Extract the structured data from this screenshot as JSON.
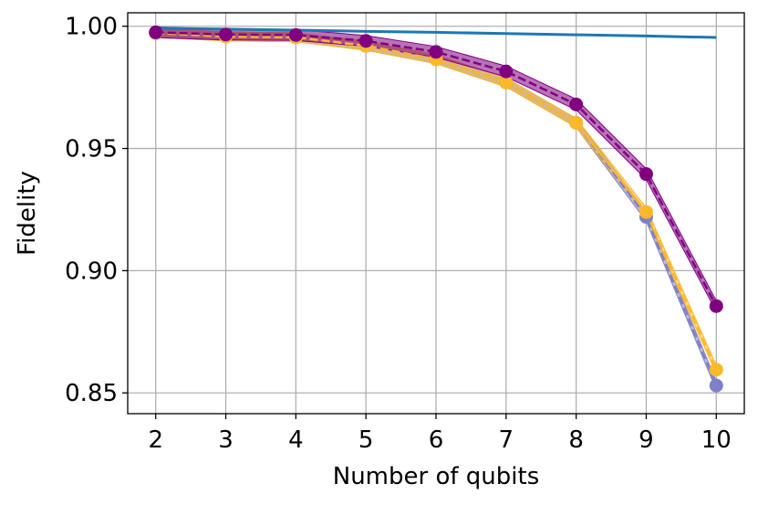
{
  "chart_data": {
    "type": "line",
    "title": "",
    "xlabel": "Number of qubits",
    "ylabel": "Fidelity",
    "xlim": [
      1.6,
      10.4
    ],
    "ylim": [
      0.8415,
      1.0055
    ],
    "grid": true,
    "legend": "none",
    "x": [
      2,
      3,
      4,
      5,
      6,
      7,
      8,
      9,
      10
    ],
    "x_ticks": [
      "2",
      "3",
      "4",
      "5",
      "6",
      "7",
      "8",
      "9",
      "10"
    ],
    "y_ticks": [
      {
        "value": 0.85,
        "label": "0.85"
      },
      {
        "value": 0.9,
        "label": "0.90"
      },
      {
        "value": 0.95,
        "label": "0.95"
      },
      {
        "value": 1.0,
        "label": "1.00"
      }
    ],
    "series": [
      {
        "color": "#1f77b4",
        "style": "line",
        "values": [
          0.9992,
          0.9988,
          0.9984,
          0.9979,
          0.9975,
          0.997,
          0.9965,
          0.996,
          0.9954
        ]
      },
      {
        "color": "#8080c8",
        "style": "marker-dashed",
        "band": 0.0018,
        "values": [
          0.9972,
          0.9958,
          0.9955,
          0.992,
          0.9865,
          0.977,
          0.9605,
          0.922,
          0.853
        ]
      },
      {
        "color": "#fbb829",
        "style": "marker-dashed",
        "band": 0.0018,
        "values": [
          0.9972,
          0.9958,
          0.9955,
          0.992,
          0.9865,
          0.977,
          0.9605,
          0.924,
          0.8595
        ]
      },
      {
        "color": "#800080",
        "style": "marker-dashed",
        "band": 0.0022,
        "values": [
          0.9975,
          0.9966,
          0.9964,
          0.994,
          0.9895,
          0.9815,
          0.968,
          0.9395,
          0.8855
        ]
      }
    ]
  }
}
